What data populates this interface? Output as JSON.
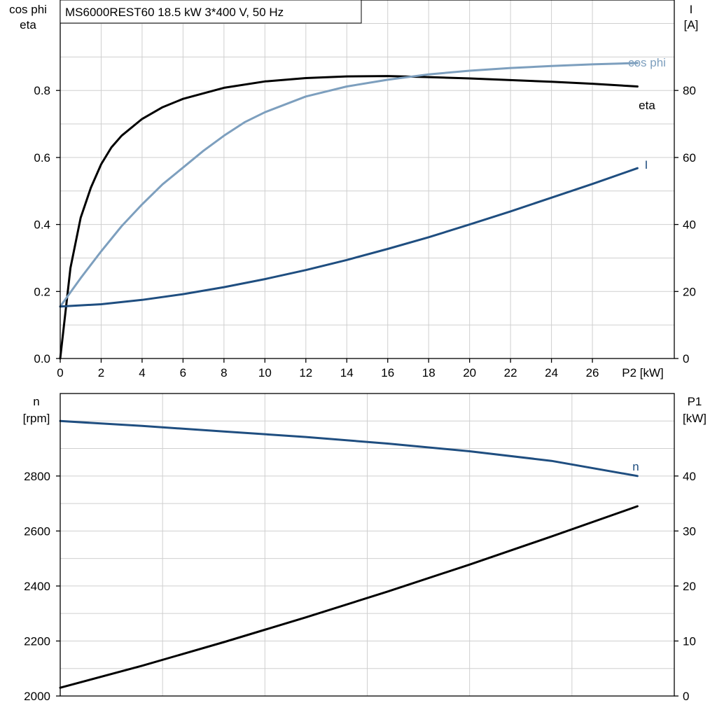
{
  "title": "MS6000REST60   18.5 kW   3*400 V, 50 Hz",
  "colors": {
    "eta": "#000000",
    "cos_phi": "#7d9fbe",
    "current": "#1f4e80",
    "speed": "#1f4e80",
    "p1": "#000000"
  },
  "chart_data": [
    {
      "type": "line",
      "id": "upper",
      "xlabel": "P2 [kW]",
      "xticks": [
        0,
        2,
        4,
        6,
        8,
        10,
        12,
        14,
        16,
        18,
        20,
        22,
        24,
        26
      ],
      "xlim": [
        0,
        30
      ],
      "left_axis": {
        "label_line1": "cos phi",
        "label_line2": "eta",
        "ylim": [
          0,
          1.07
        ],
        "ticks": [
          "0.0",
          "0.2",
          "0.4",
          "0.6",
          "0.8"
        ]
      },
      "right_axis": {
        "label_line1": "I",
        "label_line2": "[A]",
        "ylim": [
          0,
          107
        ],
        "ticks": [
          "0",
          "20",
          "40",
          "60",
          "80"
        ]
      },
      "grid": true,
      "series": [
        {
          "name": "eta",
          "axis": "left",
          "color": "#000000",
          "x": [
            0,
            0.5,
            1,
            1.5,
            2,
            2.5,
            3,
            4,
            5,
            6,
            8,
            10,
            12,
            14,
            16,
            18,
            20,
            22,
            24,
            26,
            28.2
          ],
          "y": [
            0,
            0.27,
            0.42,
            0.51,
            0.58,
            0.63,
            0.665,
            0.715,
            0.75,
            0.775,
            0.808,
            0.827,
            0.837,
            0.842,
            0.843,
            0.84,
            0.836,
            0.831,
            0.826,
            0.82,
            0.812
          ]
        },
        {
          "name": "cos phi",
          "axis": "left",
          "color": "#7d9fbe",
          "x": [
            0,
            1,
            2,
            3,
            4,
            5,
            6,
            7,
            8,
            9,
            10,
            12,
            14,
            16,
            18,
            20,
            22,
            24,
            26,
            28.2
          ],
          "y": [
            0.155,
            0.24,
            0.32,
            0.395,
            0.46,
            0.52,
            0.57,
            0.62,
            0.665,
            0.705,
            0.735,
            0.782,
            0.812,
            0.832,
            0.848,
            0.859,
            0.867,
            0.873,
            0.878,
            0.882
          ]
        },
        {
          "name": "I",
          "axis": "right",
          "color": "#1f4e80",
          "x": [
            0,
            2,
            4,
            6,
            8,
            10,
            12,
            14,
            16,
            18,
            20,
            22,
            24,
            26,
            28.2
          ],
          "y": [
            15.5,
            16.2,
            17.5,
            19.2,
            21.3,
            23.7,
            26.4,
            29.4,
            32.7,
            36.2,
            40.0,
            43.9,
            48.0,
            52.1,
            56.8
          ]
        }
      ]
    },
    {
      "type": "line",
      "id": "lower",
      "xlim": [
        0,
        30
      ],
      "xgrid": [
        0,
        5,
        10,
        15,
        20,
        25
      ],
      "left_axis": {
        "label_line1": "n",
        "label_line2": "[rpm]",
        "ylim": [
          2000,
          3100
        ],
        "ticks": [
          "2000",
          "2200",
          "2400",
          "2600",
          "2800"
        ]
      },
      "right_axis": {
        "label_line1": "P1",
        "label_line2": "[kW]",
        "ylim": [
          0,
          55
        ],
        "ticks": [
          "0",
          "10",
          "20",
          "30",
          "40"
        ]
      },
      "grid": true,
      "series": [
        {
          "name": "n",
          "axis": "left",
          "color": "#1f4e80",
          "x": [
            0,
            4,
            8,
            12,
            16,
            20,
            24,
            28.2
          ],
          "y": [
            3000,
            2982,
            2962,
            2942,
            2918,
            2890,
            2855,
            2800
          ]
        },
        {
          "name": "",
          "axis": "right",
          "color": "#000000",
          "x": [
            0,
            4,
            8,
            12,
            16,
            20,
            24,
            28.2
          ],
          "y": [
            1.5,
            5.5,
            9.8,
            14.3,
            19.0,
            23.9,
            29.0,
            34.5
          ]
        }
      ]
    }
  ]
}
